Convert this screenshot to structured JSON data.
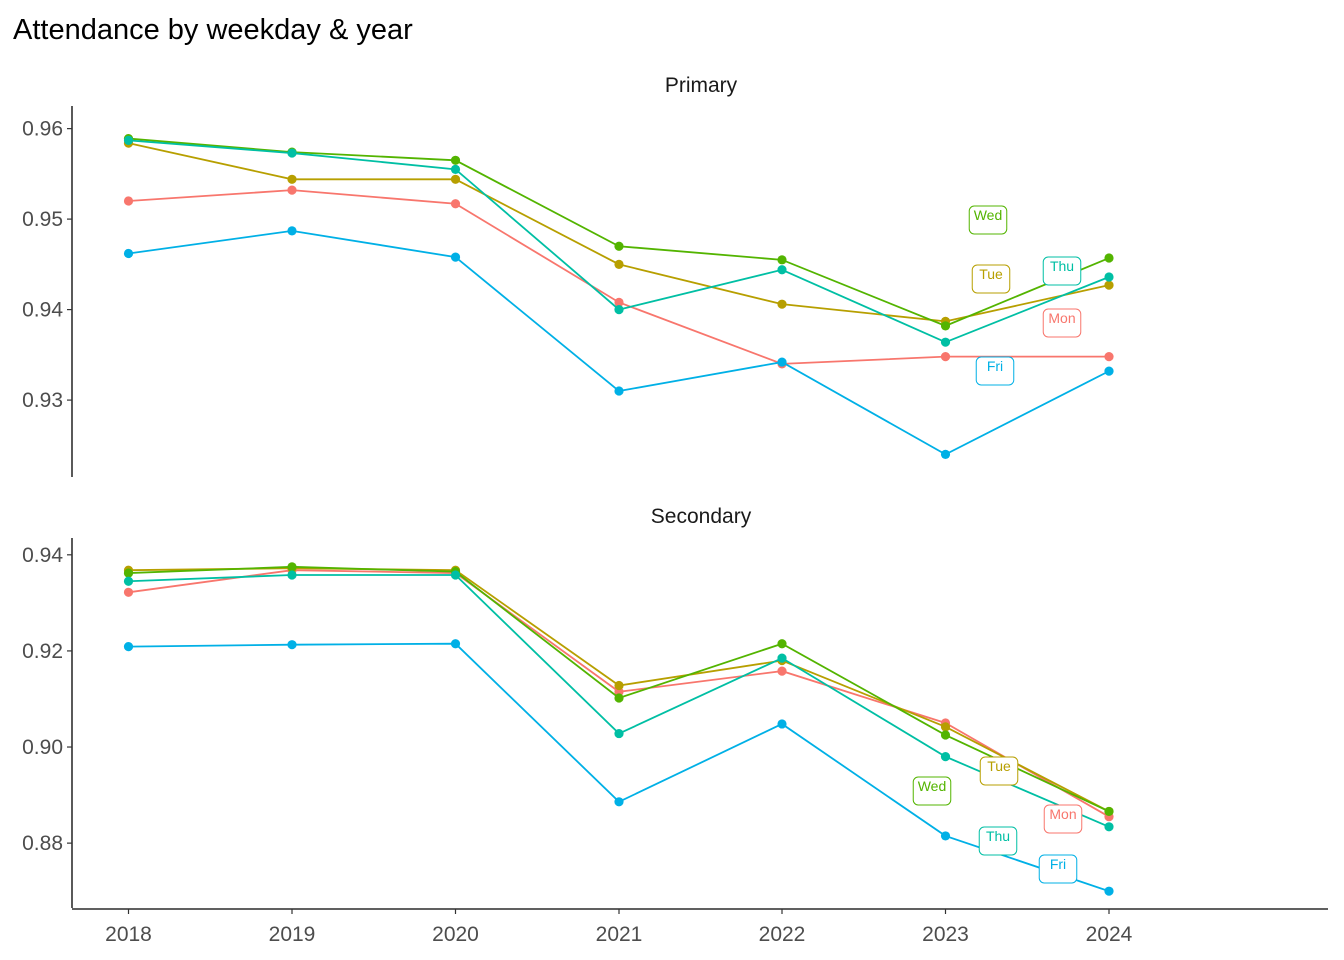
{
  "title": "Attendance by weekday & year",
  "chart_data": {
    "type": "line",
    "title": "Attendance by weekday & year",
    "xlabel": "",
    "ylabel": "",
    "x": [
      2018,
      2019,
      2020,
      2021,
      2022,
      2023,
      2024
    ],
    "legend": "none (direct labels)",
    "grid": false,
    "colors": {
      "Mon": "#F8766D",
      "Tue": "#B79F00",
      "Wed": "#53B400",
      "Thu": "#00BFA4",
      "Fri": "#00B0E6"
    },
    "panels": [
      {
        "name": "Primary",
        "ylim": [
          0.9215,
          0.9625
        ],
        "yticks": [
          "0.93",
          "0.94",
          "0.95",
          "0.96"
        ],
        "series": [
          {
            "name": "Mon",
            "values": [
              0.952,
              0.9532,
              0.9517,
              0.9408,
              0.934,
              0.9348,
              0.9348
            ]
          },
          {
            "name": "Tue",
            "values": [
              0.9584,
              0.9544,
              0.9544,
              0.945,
              0.9406,
              0.9387,
              0.9427
            ]
          },
          {
            "name": "Wed",
            "values": [
              0.9589,
              0.9574,
              0.9565,
              0.947,
              0.9455,
              0.9382,
              0.9457
            ]
          },
          {
            "name": "Thu",
            "values": [
              0.9587,
              0.9573,
              0.9555,
              0.94,
              0.9444,
              0.9364,
              0.9436
            ]
          },
          {
            "name": "Fri",
            "values": [
              0.9462,
              0.9487,
              0.9458,
              0.931,
              0.9342,
              0.924,
              0.9332
            ]
          }
        ]
      },
      {
        "name": "Secondary",
        "ylim": [
          0.8665,
          0.9435
        ],
        "yticks": [
          "0.88",
          "0.90",
          "0.92",
          "0.94"
        ],
        "series": [
          {
            "name": "Mon",
            "values": [
              0.9322,
              0.9368,
              0.9362,
              0.9115,
              0.9158,
              0.905,
              0.8855
            ]
          },
          {
            "name": "Tue",
            "values": [
              0.9368,
              0.9372,
              0.9368,
              0.9128,
              0.918,
              0.9042,
              0.8866
            ]
          },
          {
            "name": "Wed",
            "values": [
              0.9362,
              0.9375,
              0.9365,
              0.9102,
              0.9215,
              0.9025,
              0.8866
            ]
          },
          {
            "name": "Thu",
            "values": [
              0.9345,
              0.9358,
              0.9358,
              0.9028,
              0.9185,
              0.898,
              0.8834
            ]
          },
          {
            "name": "Fri",
            "values": [
              0.9209,
              0.9213,
              0.9215,
              0.8886,
              0.9048,
              0.8815,
              0.87
            ]
          }
        ]
      }
    ]
  }
}
